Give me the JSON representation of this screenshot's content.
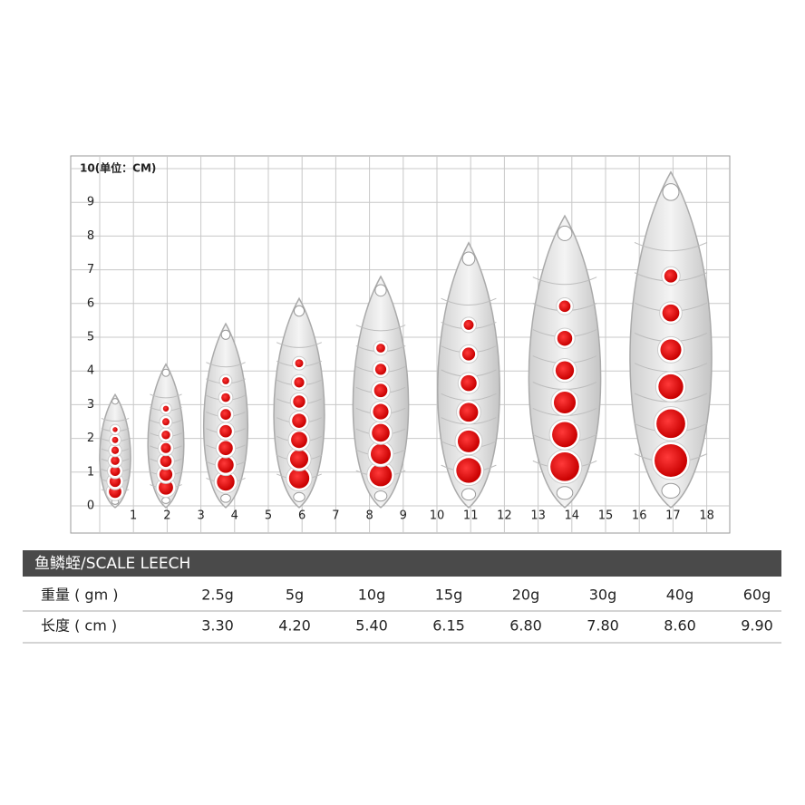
{
  "grid": {
    "unit_label": "10(单位：CM)",
    "y_labels": [
      "0",
      "1",
      "2",
      "3",
      "4",
      "5",
      "6",
      "7",
      "8",
      "9"
    ],
    "x_labels": [
      "1",
      "2",
      "3",
      "4",
      "5",
      "6",
      "7",
      "8",
      "9",
      "10",
      "11",
      "12",
      "13",
      "14",
      "15",
      "16",
      "17",
      "18"
    ]
  },
  "table": {
    "title": "鱼鳞蛭/SCALE LEECH",
    "rows": [
      [
        "重量 ( gm )",
        "2.5g",
        "5g",
        "10g",
        "15g",
        "20g",
        "30g",
        "40g",
        "60g"
      ],
      [
        "长度 ( cm )",
        "3.30",
        "4.20",
        "5.40",
        "6.15",
        "6.80",
        "7.80",
        "8.60",
        "9.90"
      ]
    ]
  }
}
